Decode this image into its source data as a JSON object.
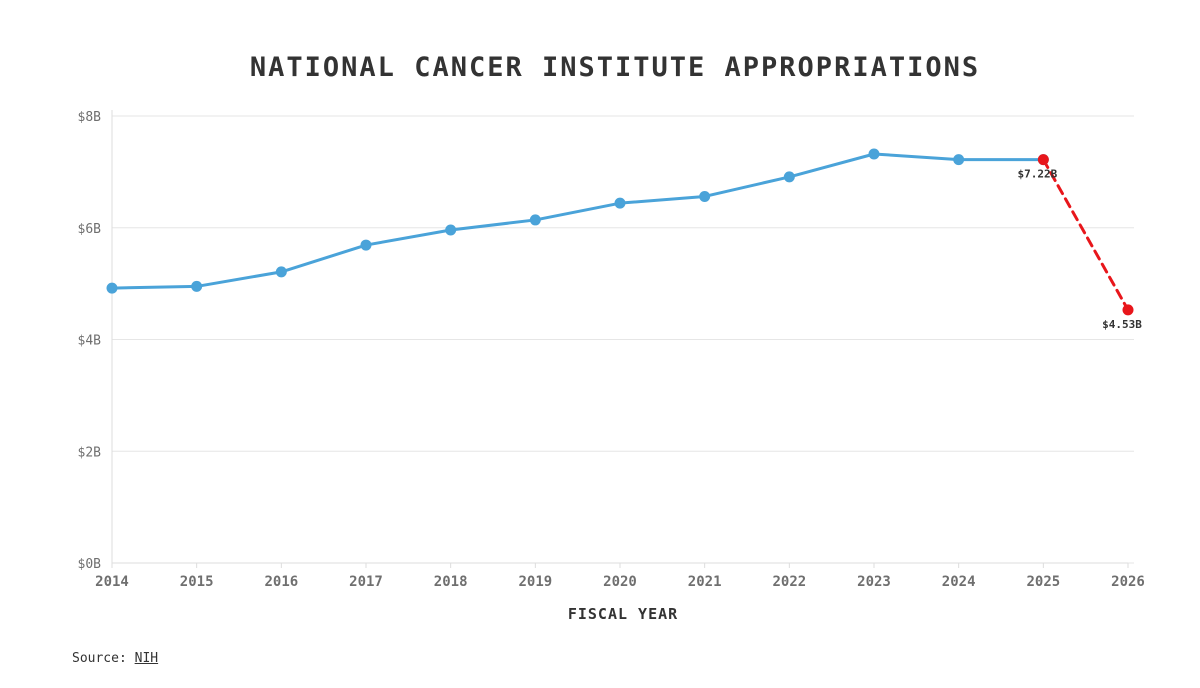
{
  "chart_data": {
    "type": "line",
    "title": "NATIONAL CANCER INSTITUTE APPROPRIATIONS",
    "xlabel": "FISCAL YEAR",
    "ylabel": "",
    "ylim": [
      0,
      8
    ],
    "y_ticks": [
      {
        "value": 0,
        "label": "$0B"
      },
      {
        "value": 2,
        "label": "$2B"
      },
      {
        "value": 4,
        "label": "$4B"
      },
      {
        "value": 6,
        "label": "$6B"
      },
      {
        "value": 8,
        "label": "$8B"
      }
    ],
    "x": [
      "2014",
      "2015",
      "2016",
      "2017",
      "2018",
      "2019",
      "2020",
      "2021",
      "2022",
      "2023",
      "2024",
      "2025",
      "2026"
    ],
    "series": [
      {
        "style": "solid",
        "color": "#4aa3d9",
        "x": [
          "2014",
          "2015",
          "2016",
          "2017",
          "2018",
          "2019",
          "2020",
          "2021",
          "2022",
          "2023",
          "2024",
          "2025"
        ],
        "values": [
          4.92,
          4.95,
          5.21,
          5.69,
          5.96,
          6.14,
          6.44,
          6.56,
          6.91,
          7.32,
          7.22,
          7.22
        ]
      },
      {
        "style": "dashed",
        "color": "#e8161b",
        "x": [
          "2025",
          "2026"
        ],
        "values": [
          7.22,
          4.53
        ]
      }
    ],
    "annotations": [
      {
        "x": "2025",
        "value": 7.22,
        "label": "$7.22B"
      },
      {
        "x": "2026",
        "value": 4.53,
        "label": "$4.53B"
      }
    ],
    "grid": true,
    "legend": "none"
  },
  "source": {
    "prefix": "Source: ",
    "link_text": "NIH"
  }
}
